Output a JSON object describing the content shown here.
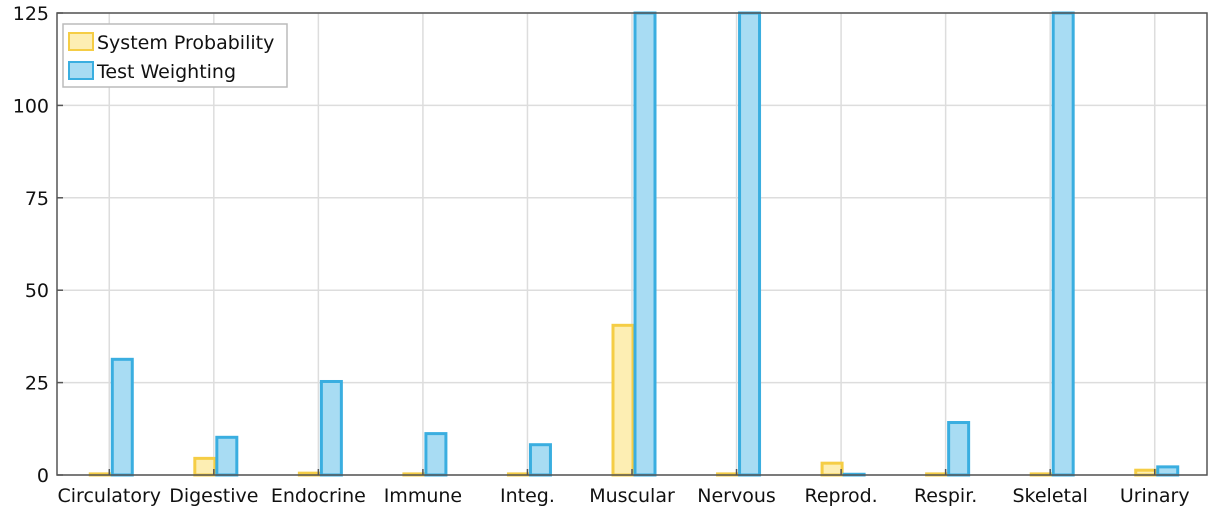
{
  "chart_data": {
    "type": "bar",
    "categories": [
      "Circulatory",
      "Digestive",
      "Endocrine",
      "Immune",
      "Integ.",
      "Muscular",
      "Nervous",
      "Reprod.",
      "Respir.",
      "Skeletal",
      "Urinary"
    ],
    "series": [
      {
        "name": "System Probability",
        "values": [
          0.3,
          4.5,
          0.5,
          0.3,
          0.3,
          40.5,
          0.3,
          3.2,
          0.3,
          0.3,
          1.3
        ],
        "color": "#f5cd45",
        "fill": "#fdeeb3"
      },
      {
        "name": "Test Weighting",
        "values": [
          31.3,
          10.2,
          25.3,
          11.2,
          8.2,
          125,
          125,
          0.2,
          14.2,
          125,
          2.2
        ],
        "color": "#3aaee0",
        "fill": "#a8dcf3"
      }
    ],
    "ylim": [
      0,
      125
    ],
    "yticks": [
      0,
      25,
      50,
      75,
      100,
      125
    ],
    "grid": true,
    "legend_position": "top-left",
    "title": "",
    "xlabel": "",
    "ylabel": ""
  }
}
